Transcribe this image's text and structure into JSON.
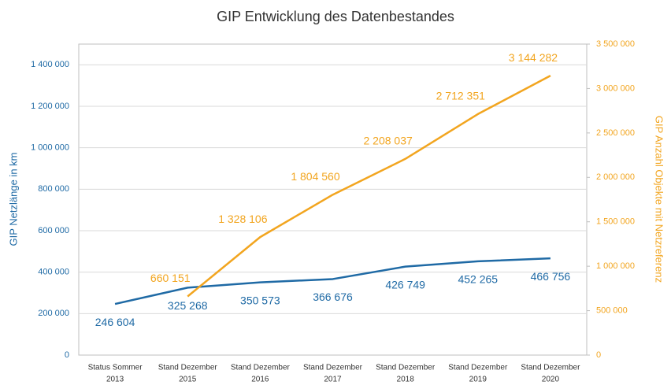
{
  "chart_data": {
    "type": "line",
    "title": "GIP Entwicklung des Datenbestandes",
    "y_label": "GIP Netzlänge in km",
    "y2_label": "GIP Anzahl Objekte mit Netzreferenz",
    "categories": [
      [
        "Status Sommer",
        "2013"
      ],
      [
        "Stand Dezember",
        "2015"
      ],
      [
        "Stand Dezember",
        "2016"
      ],
      [
        "Stand Dezember",
        "2017"
      ],
      [
        "Stand Dezember",
        "2018"
      ],
      [
        "Stand Dezember",
        "2019"
      ],
      [
        "Stand Dezember",
        "2020"
      ]
    ],
    "series": [
      {
        "name": "GIP Netzlänge in km",
        "color": "#1f6aa5",
        "axis": "y",
        "values": [
          246604,
          325268,
          350573,
          366676,
          426749,
          452265,
          466756
        ],
        "value_labels": [
          "246 604",
          "325 268",
          "350 573",
          "366 676",
          "426 749",
          "452 265",
          "466 756"
        ]
      },
      {
        "name": "GIP Anzahl Objekte mit Netzreferenz",
        "color": "#f2a51f",
        "axis": "y2",
        "values": [
          null,
          660151,
          1328106,
          1804560,
          2208037,
          2712351,
          3144282
        ],
        "value_labels": [
          null,
          "660 151",
          "1 328 106",
          "1 804 560",
          "2 208 037",
          "2 712 351",
          "3 144 282"
        ]
      }
    ],
    "ylim": [
      0,
      1500000
    ],
    "yticks": [
      0,
      {
        "value": 200000,
        "label": "200 000"
      },
      {
        "value": 400000,
        "label": "400 000"
      },
      {
        "value": 600000,
        "label": "600 000"
      },
      {
        "value": 800000,
        "label": "800 000"
      },
      {
        "value": 1000000,
        "label": "1 000 000"
      },
      {
        "value": 1200000,
        "label": "1 200 000"
      },
      {
        "value": 1400000,
        "label": "1 400 000"
      }
    ],
    "y2lim": [
      0,
      3500000
    ],
    "y2ticks": [
      0,
      {
        "value": 500000,
        "label": "500 000"
      },
      {
        "value": 1000000,
        "label": "1 000 000"
      },
      {
        "value": 1500000,
        "label": "1 500 000"
      },
      {
        "value": 2000000,
        "label": "2 000 000"
      },
      {
        "value": 2500000,
        "label": "2 500 000"
      },
      {
        "value": 3000000,
        "label": "3 000 000"
      },
      {
        "value": 3500000,
        "label": "3 500 000"
      }
    ],
    "grid": true
  }
}
